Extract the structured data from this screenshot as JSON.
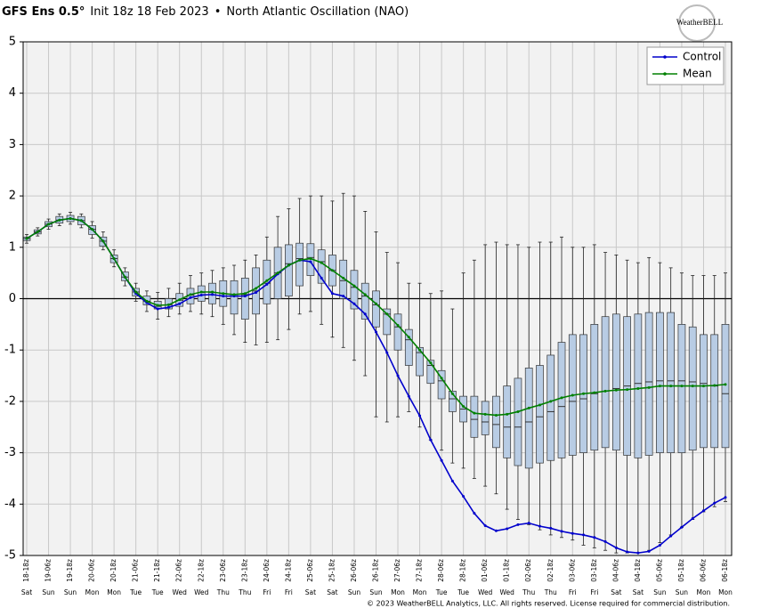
{
  "chart_data": {
    "type": "box",
    "title": "GFS Ens 0.5°",
    "subtitle": "Init 18z 18 Feb 2023",
    "title_separator": "•",
    "chart_name": "North Atlantic Oscillation (NAO)",
    "logo_text": "WeatherBELL",
    "copyright": "© 2023 WeatherBELL Analytics, LLC. All rights reserved. License required for commercial distribution.",
    "categories": [
      "18-18z",
      null,
      "19-06z",
      null,
      "19-18z",
      null,
      "20-06z",
      null,
      "20-18z",
      null,
      "21-06z",
      null,
      "21-18z",
      null,
      "22-06z",
      null,
      "22-18z",
      null,
      "23-06z",
      null,
      "23-18z",
      null,
      "24-06z",
      null,
      "24-18z",
      null,
      "25-06z",
      null,
      "25-18z",
      null,
      "26-06z",
      null,
      "26-18z",
      null,
      "27-06z",
      null,
      "27-18z",
      null,
      "28-06z",
      null,
      "28-18z",
      null,
      "01-06z",
      null,
      "01-18z",
      null,
      "02-06z",
      null,
      "02-18z",
      null,
      "03-06z",
      null,
      "03-18z",
      null,
      "04-06z",
      null,
      "04-18z",
      null,
      "05-06z",
      null,
      "05-18z",
      null,
      "06-06z",
      null,
      "06-18z"
    ],
    "day_labels": [
      "Sat",
      null,
      "Sun",
      null,
      "Sun",
      null,
      "Mon",
      null,
      "Mon",
      null,
      "Tue",
      null,
      "Tue",
      null,
      "Wed",
      null,
      "Wed",
      null,
      "Thu",
      null,
      "Thu",
      null,
      "Fri",
      null,
      "Fri",
      null,
      "Sat",
      null,
      "Sat",
      null,
      "Sun",
      null,
      "Sun",
      null,
      "Mon",
      null,
      "Mon",
      null,
      "Tue",
      null,
      "Tue",
      null,
      "Wed",
      null,
      "Wed",
      null,
      "Thu",
      null,
      "Thu",
      null,
      "Fri",
      null,
      "Fri",
      null,
      "Sat",
      null,
      "Sat",
      null,
      "Sun",
      null,
      "Sun",
      null,
      "Mon",
      null,
      "Mon"
    ],
    "ylim": [
      -5,
      5
    ],
    "yticks": [
      -5,
      -4,
      -3,
      -2,
      -1,
      0,
      1,
      2,
      3,
      4,
      5
    ],
    "grid": true,
    "legend": "upper right",
    "box_color": "#b8cce4",
    "boxes": {
      "high": [
        1.25,
        1.38,
        1.55,
        1.65,
        1.68,
        1.65,
        1.5,
        1.3,
        0.95,
        0.6,
        0.3,
        0.15,
        0.12,
        0.2,
        0.3,
        0.45,
        0.5,
        0.55,
        0.6,
        0.65,
        0.75,
        0.85,
        1.2,
        1.6,
        1.75,
        1.95,
        2.0,
        2.0,
        1.9,
        2.05,
        2.0,
        1.7,
        1.3,
        0.9,
        0.7,
        0.3,
        0.3,
        0.1,
        0.15,
        -0.2,
        0.5,
        0.75,
        1.05,
        1.1,
        1.05,
        1.05,
        1.0,
        1.1,
        1.1,
        1.2,
        1.0,
        1.0,
        1.05,
        0.9,
        0.85,
        0.75,
        0.7,
        0.8,
        0.7,
        0.6,
        0.5,
        0.45,
        0.45,
        0.45,
        0.5
      ],
      "q3": [
        1.2,
        1.34,
        1.5,
        1.6,
        1.62,
        1.6,
        1.42,
        1.2,
        0.85,
        0.52,
        0.2,
        0.05,
        -0.05,
        0.0,
        0.1,
        0.2,
        0.25,
        0.3,
        0.35,
        0.35,
        0.4,
        0.6,
        0.75,
        1.0,
        1.05,
        1.08,
        1.07,
        0.95,
        0.85,
        0.75,
        0.55,
        0.3,
        0.15,
        -0.2,
        -0.3,
        -0.6,
        -0.95,
        -1.2,
        -1.4,
        -1.8,
        -1.9,
        -1.9,
        -2.0,
        -1.9,
        -1.7,
        -1.55,
        -1.35,
        -1.3,
        -1.1,
        -0.85,
        -0.7,
        -0.7,
        -0.5,
        -0.35,
        -0.3,
        -0.35,
        -0.3,
        -0.27,
        -0.27,
        -0.27,
        -0.5,
        -0.55,
        -0.7,
        -0.7,
        -0.5
      ],
      "median": [
        1.17,
        1.3,
        1.45,
        1.53,
        1.56,
        1.52,
        1.35,
        1.12,
        0.78,
        0.42,
        0.13,
        -0.05,
        -0.15,
        -0.12,
        -0.03,
        0.07,
        0.12,
        0.12,
        0.1,
        0.08,
        0.08,
        0.15,
        0.3,
        0.5,
        0.68,
        0.78,
        0.8,
        0.72,
        0.55,
        0.35,
        0.22,
        0.05,
        -0.12,
        -0.3,
        -0.55,
        -0.8,
        -1.05,
        -1.3,
        -1.6,
        -1.95,
        -2.15,
        -2.35,
        -2.4,
        -2.45,
        -2.5,
        -2.5,
        -2.4,
        -2.3,
        -2.2,
        -2.1,
        -2.0,
        -1.95,
        -1.85,
        -1.8,
        -1.75,
        -1.7,
        -1.65,
        -1.62,
        -1.6,
        -1.6,
        -1.6,
        -1.62,
        -1.65,
        -1.7,
        -1.85
      ],
      "q1": [
        1.13,
        1.26,
        1.4,
        1.47,
        1.5,
        1.44,
        1.25,
        1.02,
        0.7,
        0.35,
        0.05,
        -0.12,
        -0.2,
        -0.2,
        -0.15,
        -0.1,
        -0.05,
        -0.1,
        -0.15,
        -0.3,
        -0.4,
        -0.3,
        -0.1,
        0.0,
        0.05,
        0.25,
        0.45,
        0.3,
        0.25,
        0.0,
        -0.2,
        -0.4,
        -0.55,
        -0.7,
        -1.0,
        -1.3,
        -1.5,
        -1.65,
        -1.95,
        -2.2,
        -2.4,
        -2.7,
        -2.65,
        -2.9,
        -3.1,
        -3.25,
        -3.3,
        -3.2,
        -3.15,
        -3.1,
        -3.05,
        -3.0,
        -2.95,
        -2.9,
        -2.95,
        -3.05,
        -3.1,
        -3.05,
        -3.0,
        -3.0,
        -3.0,
        -2.95,
        -2.9,
        -2.9,
        -2.9
      ],
      "low": [
        1.08,
        1.22,
        1.35,
        1.42,
        1.45,
        1.38,
        1.18,
        0.95,
        0.62,
        0.25,
        -0.05,
        -0.25,
        -0.4,
        -0.35,
        -0.3,
        -0.25,
        -0.3,
        -0.35,
        -0.5,
        -0.7,
        -0.85,
        -0.9,
        -0.85,
        -0.8,
        -0.6,
        -0.3,
        -0.25,
        -0.5,
        -0.75,
        -0.95,
        -1.2,
        -1.5,
        -2.3,
        -2.4,
        -2.3,
        -2.2,
        -2.5,
        -2.75,
        -2.95,
        -3.2,
        -3.3,
        -3.5,
        -3.65,
        -3.8,
        -4.1,
        -4.3,
        -4.4,
        -4.5,
        -4.6,
        -4.65,
        -4.7,
        -4.8,
        -4.85,
        -4.9,
        -4.95,
        -4.95,
        -4.95,
        -4.9,
        -4.75,
        -4.6,
        -4.45,
        -4.3,
        -4.15,
        -4.05,
        -3.95
      ]
    },
    "series": [
      {
        "name": "Control",
        "color": "#0000cc",
        "values": [
          1.17,
          1.3,
          1.45,
          1.53,
          1.56,
          1.52,
          1.35,
          1.12,
          0.78,
          0.42,
          0.1,
          -0.08,
          -0.2,
          -0.17,
          -0.1,
          0.02,
          0.07,
          0.08,
          0.05,
          0.05,
          0.05,
          0.12,
          0.28,
          0.48,
          0.65,
          0.75,
          0.72,
          0.4,
          0.1,
          0.05,
          -0.1,
          -0.3,
          -0.65,
          -1.05,
          -1.5,
          -1.9,
          -2.28,
          -2.75,
          -3.15,
          -3.55,
          -3.85,
          -4.18,
          -4.42,
          -4.52,
          -4.48,
          -4.4,
          -4.37,
          -4.43,
          -4.47,
          -4.53,
          -4.57,
          -4.6,
          -4.65,
          -4.73,
          -4.85,
          -4.93,
          -4.95,
          -4.92,
          -4.8,
          -4.62,
          -4.45,
          -4.28,
          -4.13,
          -3.98,
          -3.87
        ]
      },
      {
        "name": "Mean",
        "color": "#008000",
        "values": [
          1.17,
          1.3,
          1.45,
          1.53,
          1.56,
          1.52,
          1.35,
          1.12,
          0.78,
          0.42,
          0.13,
          -0.05,
          -0.13,
          -0.12,
          -0.02,
          0.08,
          0.13,
          0.13,
          0.1,
          0.08,
          0.1,
          0.2,
          0.35,
          0.5,
          0.65,
          0.75,
          0.78,
          0.7,
          0.55,
          0.4,
          0.25,
          0.08,
          -0.1,
          -0.3,
          -0.52,
          -0.75,
          -1.0,
          -1.25,
          -1.55,
          -1.85,
          -2.1,
          -2.23,
          -2.25,
          -2.27,
          -2.25,
          -2.2,
          -2.13,
          -2.07,
          -2.0,
          -1.93,
          -1.88,
          -1.85,
          -1.83,
          -1.8,
          -1.78,
          -1.77,
          -1.75,
          -1.73,
          -1.7,
          -1.7,
          -1.7,
          -1.7,
          -1.7,
          -1.69,
          -1.67
        ]
      }
    ]
  }
}
